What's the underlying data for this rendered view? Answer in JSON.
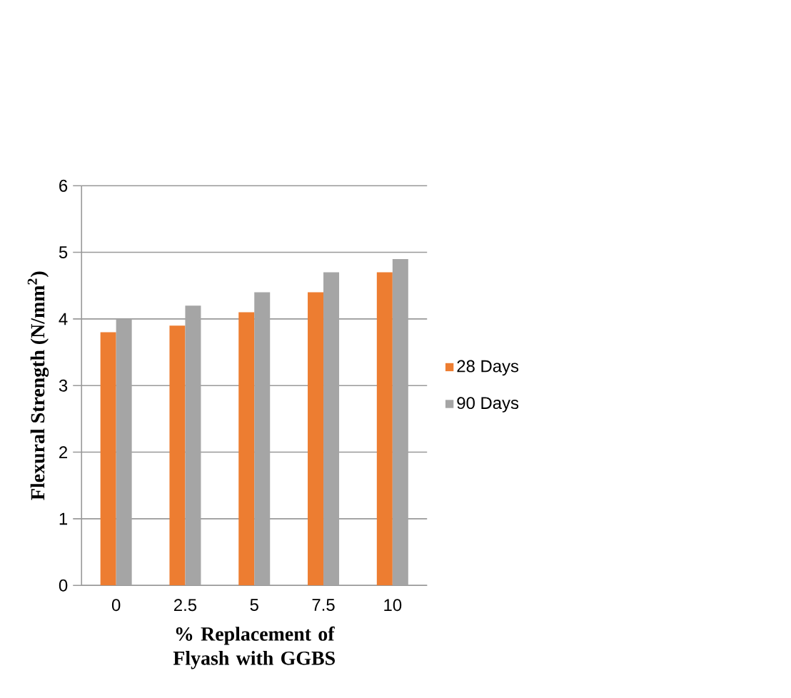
{
  "chart_data": {
    "type": "bar",
    "xlabel": "% Replacement of Flyash with GGBS",
    "ylabel": "Flexural Strength (N/mm$^{2}$)",
    "categories": [
      "0",
      "2.5",
      "5",
      "7.5",
      "10"
    ],
    "series": [
      {
        "name": "28 Days",
        "color": "#ed7d31",
        "values": [
          3.8,
          3.9,
          4.1,
          4.4,
          4.7
        ]
      },
      {
        "name": "90 Days",
        "color": "#a5a5a5",
        "values": [
          4.0,
          4.2,
          4.4,
          4.7,
          4.9
        ]
      }
    ],
    "ylim": [
      0,
      6
    ],
    "yticks": [
      0,
      1,
      2,
      3,
      4,
      5,
      6
    ],
    "grid": "y",
    "legend": "right"
  }
}
